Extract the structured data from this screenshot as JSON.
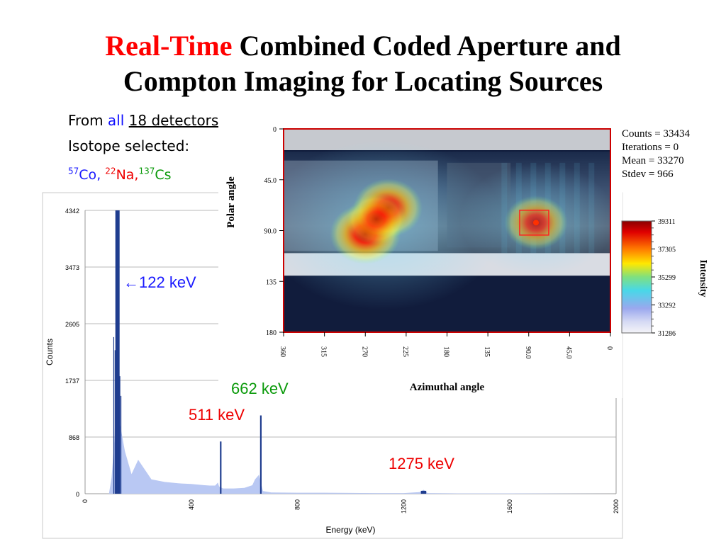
{
  "slide": {
    "title_highlight": "Real-Time",
    "title_line1_rest": " Combined Coded Aperture and",
    "title_line2": "Compton Imaging for Locating Sources",
    "bullets": {
      "from_prefix": "From ",
      "from_all": "all",
      "from_detectors": "18 detectors",
      "isotope_label": "Isotope selected:",
      "isotopes": [
        {
          "mass": "57",
          "symbol": "Co",
          "sep": ", ",
          "color": "#1a1aff"
        },
        {
          "mass": "22",
          "symbol": "Na,",
          "sep": "",
          "color": "#ee0000"
        },
        {
          "mass": "137",
          "symbol": "Cs",
          "sep": "",
          "color": "#0a9a0a"
        }
      ]
    }
  },
  "chart_data": [
    {
      "type": "area",
      "xlabel": "Energy (keV)",
      "ylabel": "Counts",
      "xlim": [
        0,
        2000
      ],
      "ylim": [
        0,
        4342
      ],
      "x_ticks": [
        "0",
        "400",
        "800",
        "1200",
        "1600",
        "2000"
      ],
      "y_ticks": [
        "0",
        "868",
        "1737",
        "2605",
        "3473",
        "4342"
      ],
      "grid": "horizontal",
      "series": [
        {
          "color": "#b9c8f3",
          "x": [
            90,
            100,
            110,
            115,
            120,
            130,
            150,
            175,
            200,
            250,
            300,
            350,
            400,
            450,
            470,
            490,
            500,
            505,
            520,
            560,
            600,
            630,
            640,
            655,
            670,
            700,
            800,
            900,
            1000,
            1100,
            1200,
            1260,
            1275,
            1290,
            1400,
            1600,
            1800,
            2000
          ],
          "y": [
            0,
            250,
            800,
            1300,
            1350,
            1100,
            650,
            300,
            520,
            220,
            180,
            160,
            150,
            130,
            125,
            125,
            170,
            110,
            80,
            80,
            90,
            130,
            220,
            290,
            40,
            20,
            15,
            15,
            12,
            10,
            10,
            25,
            60,
            10,
            5,
            5,
            3,
            0
          ]
        }
      ],
      "peaks": [
        {
          "x": 122,
          "y": 4342,
          "width": 16
        },
        {
          "x": 511,
          "y": 800,
          "width": 6
        },
        {
          "x": 662,
          "y": 1200,
          "width": 6
        },
        {
          "x": 1275,
          "y": 45,
          "width": 20
        }
      ],
      "annotations": [
        {
          "label": "←122 keV",
          "x": 122,
          "color": "#1a1aff"
        },
        {
          "label": "511 keV",
          "x": 511,
          "color": "#ee0000"
        },
        {
          "label": "662 keV",
          "x": 662,
          "color": "#0a9a0a"
        },
        {
          "label": "1275 keV",
          "x": 1275,
          "color": "#ee0000"
        }
      ]
    },
    {
      "type": "heatmap",
      "xlabel": "Azimuthal angle",
      "ylabel": "Polar angle",
      "x_ticks": [
        "360",
        "315",
        "270",
        "225",
        "180",
        "135",
        "90.0",
        "45.0",
        "0"
      ],
      "y_ticks": [
        "0",
        "45.0",
        "90.0",
        "135",
        "180"
      ],
      "xlim": [
        360,
        0
      ],
      "ylim": [
        0,
        180
      ],
      "hotspots": [
        {
          "azimuth": 270,
          "polar": 93,
          "intensity": 1.0
        },
        {
          "azimuth": 245,
          "polar": 70,
          "intensity": 0.95
        },
        {
          "azimuth": 258,
          "polar": 80,
          "intensity": 0.7
        },
        {
          "azimuth": 82,
          "polar": 83,
          "intensity": 0.8
        }
      ],
      "highlight_box": {
        "azimuth": [
          100,
          68
        ],
        "polar": [
          72,
          94
        ]
      },
      "colorbar": {
        "label": "Intensity",
        "ticks": [
          "39311",
          "37305",
          "35299",
          "33292",
          "31286"
        ],
        "range": [
          31286,
          39311
        ]
      },
      "stats": [
        "Counts = 33434",
        "Iterations = 0",
        "Mean = 33270",
        "Stdev = 966"
      ]
    }
  ]
}
